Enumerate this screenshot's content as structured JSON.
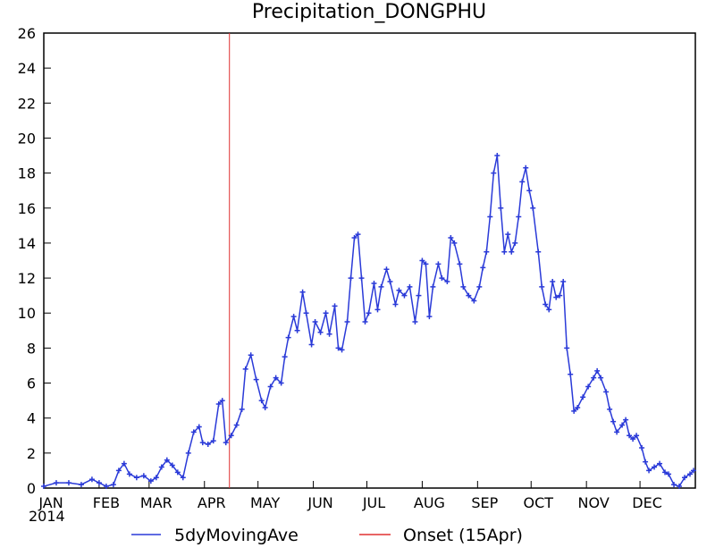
{
  "chart_data": {
    "type": "line",
    "title": "Precipitation_DONGPHU",
    "year": "2014",
    "x": [
      1,
      8,
      15,
      22,
      28,
      32,
      36,
      40,
      43,
      46,
      49,
      53,
      57,
      61,
      64,
      67,
      70,
      73,
      76,
      79,
      82,
      85,
      88,
      90,
      93,
      96,
      99,
      101,
      103,
      106,
      109,
      112,
      114,
      117,
      120,
      123,
      125,
      128,
      131,
      134,
      136,
      138,
      141,
      143,
      146,
      148,
      151,
      153,
      156,
      159,
      161,
      164,
      166,
      168,
      171,
      173,
      175,
      177,
      179,
      181,
      183,
      186,
      188,
      190,
      193,
      195,
      198,
      200,
      203,
      206,
      209,
      211,
      213,
      215,
      217,
      219,
      222,
      224,
      227,
      229,
      231,
      234,
      236,
      239,
      242,
      245,
      247,
      249,
      251,
      253,
      255,
      257,
      259,
      261,
      263,
      265,
      267,
      269,
      271,
      273,
      275,
      278,
      280,
      282,
      284,
      286,
      288,
      290,
      292,
      294,
      296,
      298,
      300,
      303,
      306,
      309,
      311,
      313,
      316,
      318,
      320,
      322,
      325,
      327,
      329,
      331,
      333,
      336,
      338,
      340,
      343,
      346,
      349,
      351,
      354,
      357,
      360,
      363,
      365
    ],
    "series": [
      {
        "name": "5dyMovingAve",
        "color": "#2a3ad8",
        "values": [
          0.1,
          0.3,
          0.3,
          0.2,
          0.5,
          0.3,
          0.1,
          0.2,
          1.0,
          1.4,
          0.8,
          0.6,
          0.7,
          0.4,
          0.6,
          1.2,
          1.6,
          1.3,
          0.9,
          0.6,
          2.0,
          3.2,
          3.5,
          2.6,
          2.5,
          2.7,
          4.8,
          5.0,
          2.6,
          3.0,
          3.6,
          4.5,
          6.8,
          7.6,
          6.2,
          5.0,
          4.6,
          5.8,
          6.3,
          6.0,
          7.5,
          8.6,
          9.8,
          9.0,
          11.2,
          10.0,
          8.2,
          9.5,
          8.9,
          10.0,
          8.8,
          10.4,
          8.0,
          7.9,
          9.5,
          12.0,
          14.3,
          14.5,
          12.0,
          9.5,
          10.0,
          11.7,
          10.2,
          11.5,
          12.5,
          11.8,
          10.5,
          11.3,
          11.0,
          11.5,
          9.5,
          11.0,
          13.0,
          12.8,
          9.8,
          11.5,
          12.8,
          12.0,
          11.8,
          14.3,
          14.0,
          12.8,
          11.5,
          11.0,
          10.7,
          11.5,
          12.6,
          13.5,
          15.5,
          18.0,
          19.0,
          16.0,
          13.5,
          14.5,
          13.5,
          14.0,
          15.5,
          17.5,
          18.3,
          17.0,
          16.0,
          13.5,
          11.5,
          10.5,
          10.2,
          11.8,
          10.9,
          11.0,
          11.8,
          8.0,
          6.5,
          4.4,
          4.6,
          5.2,
          5.8,
          6.3,
          6.7,
          6.3,
          5.5,
          4.5,
          3.8,
          3.2,
          3.6,
          3.9,
          3.0,
          2.8,
          3.0,
          2.3,
          1.5,
          1.0,
          1.2,
          1.4,
          0.9,
          0.8,
          0.2,
          0.1,
          0.6,
          0.8,
          1.0
        ]
      }
    ],
    "vlines": [
      {
        "name": "Onset (15Apr)",
        "x": 105,
        "color": "#e03030"
      }
    ],
    "xlim": [
      1,
      366
    ],
    "xticks": [
      {
        "value": 1,
        "label": "JAN"
      },
      {
        "value": 32,
        "label": "FEB"
      },
      {
        "value": 60,
        "label": "MAR"
      },
      {
        "value": 91,
        "label": "APR"
      },
      {
        "value": 121,
        "label": "MAY"
      },
      {
        "value": 152,
        "label": "JUN"
      },
      {
        "value": 182,
        "label": "JUL"
      },
      {
        "value": 213,
        "label": "AUG"
      },
      {
        "value": 244,
        "label": "SEP"
      },
      {
        "value": 274,
        "label": "OCT"
      },
      {
        "value": 305,
        "label": "NOV"
      },
      {
        "value": 335,
        "label": "DEC"
      }
    ],
    "ylim": [
      0,
      26
    ],
    "yticks": [
      0,
      2,
      4,
      6,
      8,
      10,
      12,
      14,
      16,
      18,
      20,
      22,
      24,
      26
    ],
    "markers": true
  }
}
